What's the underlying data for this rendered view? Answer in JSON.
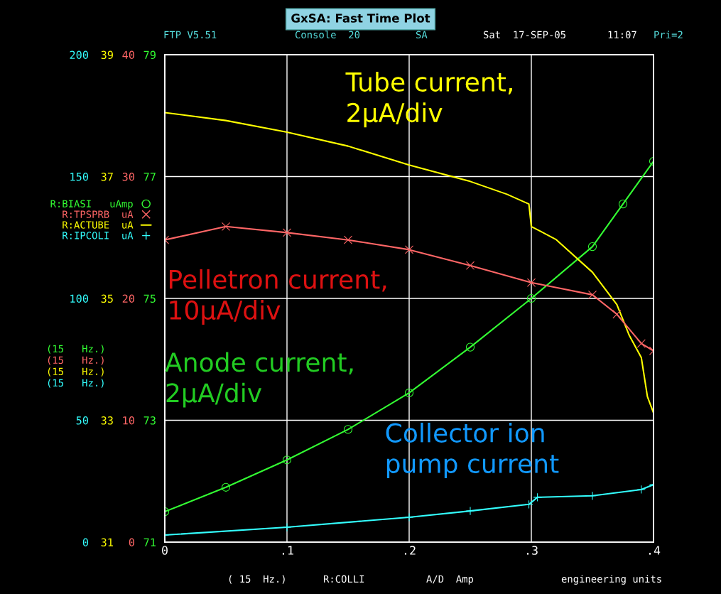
{
  "chart_data": [
    {
      "type": "line",
      "title": "GxSA: Fast Time Plot",
      "x": [
        0,
        0.05,
        0.1,
        0.15,
        0.2,
        0.25,
        0.3,
        0.35,
        0.375,
        0.4
      ],
      "series": [
        {
          "name": "R:BIASI   uAmp",
          "color": "#33ff33",
          "marker": "circle",
          "values": [
            71.5,
            71.9,
            72.35,
            72.85,
            73.45,
            74.2,
            75.0,
            75.85,
            76.55,
            77.25
          ]
        },
        {
          "name": "R:TPSPRB  uA",
          "color": "#ff6666",
          "marker": "cross",
          "axis": "y2",
          "x": [
            0,
            0.05,
            0.1,
            0.15,
            0.2,
            0.25,
            0.3,
            0.35,
            0.37,
            0.39,
            0.4
          ],
          "values": [
            24.8,
            25.9,
            25.4,
            24.8,
            24.0,
            22.7,
            21.3,
            20.3,
            18.7,
            16.3,
            15.7
          ]
        }
      ],
      "xlim": [
        0,
        0.4
      ],
      "xticks": [
        0,
        {
          "value": 0.1,
          "label": ".1"
        },
        {
          "value": 0.2,
          "label": ".2"
        },
        {
          "value": 0.3,
          "label": ".3"
        },
        {
          "value": 0.4,
          "label": ".4"
        }
      ],
      "ylim": [
        71,
        79
      ],
      "yticks": [
        71,
        73,
        75,
        77,
        79
      ],
      "y2lim": [
        0,
        40
      ],
      "y2ticks": [
        0,
        10,
        20,
        30,
        40
      ],
      "grid": true,
      "legend": "left",
      "annotations": [
        "Anode current,\n2μA/div",
        "Pelletron current,\n10μA/div",
        "Tube current,\n2μA/div",
        "Collector ion\npump current",
        "(15   Hz.)",
        "(15   Hz.)",
        "(15   Hz.)",
        "(15   Hz.)",
        "FTP V5.51",
        "Console  20",
        "SA",
        "Sat  17-SEP-05",
        "11:07",
        "Pri=2",
        "( 15  Hz.)",
        "R:COLLI",
        "A/D  Amp",
        "engineering units"
      ]
    },
    {
      "type": "line",
      "series": [
        {
          "name": "R:ACTUBE  uA",
          "color": "#ffff00",
          "x": [
            0,
            0.05,
            0.1,
            0.15,
            0.2,
            0.25,
            0.28,
            0.298,
            0.3,
            0.32,
            0.35,
            0.37,
            0.38,
            0.39,
            0.395,
            0.4
          ],
          "values": [
            38.05,
            37.92,
            37.73,
            37.5,
            37.19,
            36.92,
            36.71,
            36.55,
            36.18,
            35.97,
            35.43,
            34.9,
            34.4,
            34.03,
            33.39,
            33.12
          ]
        },
        {
          "name": "R:IPCOLI  uA",
          "color": "#33ffff",
          "marker": "plus",
          "axis": "y2",
          "x": [
            0,
            0.1,
            0.2,
            0.25,
            0.298,
            0.305,
            0.35,
            0.39,
            0.4
          ],
          "values": [
            2.9,
            6.1,
            10.2,
            12.8,
            15.5,
            18.4,
            19.0,
            21.6,
            23.6
          ]
        }
      ],
      "xlim": [
        0,
        0.4
      ],
      "ylim": [
        31,
        39
      ],
      "yticks": [
        31,
        33,
        35,
        37,
        39
      ],
      "y2lim": [
        0,
        200
      ],
      "y2ticks": [
        0,
        50,
        100,
        150,
        200
      ],
      "tick_labels": "y",
      "legend": "left"
    }
  ]
}
